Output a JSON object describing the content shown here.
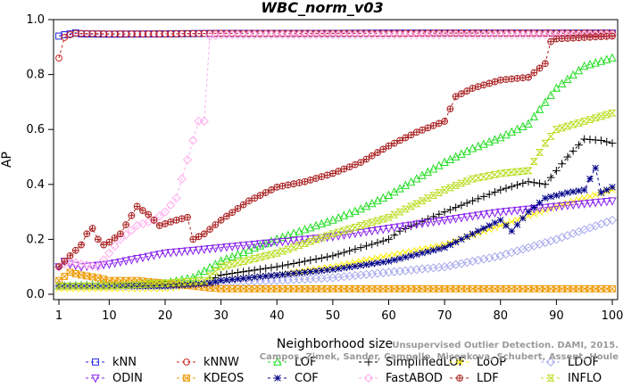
{
  "chart_data": {
    "type": "line",
    "title": "WBC_norm_v03",
    "xlabel": "Neighborhood size",
    "ylabel": "AP",
    "xlim": [
      1,
      100
    ],
    "ylim": [
      0,
      1.0
    ],
    "x_ticks": [
      1,
      10,
      20,
      30,
      40,
      50,
      60,
      70,
      80,
      90,
      100
    ],
    "y_ticks": [
      "0.0",
      "0.2",
      "0.4",
      "0.6",
      "0.8",
      "1.0"
    ],
    "grid": false,
    "legend_position": "bottom",
    "series": [
      {
        "name": "kNN",
        "color": "#2222dd",
        "marker": "square",
        "points": [
          [
            1,
            0.94
          ],
          [
            2,
            0.945
          ],
          [
            3,
            0.948
          ],
          [
            4,
            0.952
          ],
          [
            5,
            0.948
          ],
          [
            10,
            0.947
          ],
          [
            20,
            0.948
          ],
          [
            30,
            0.95
          ],
          [
            40,
            0.95
          ],
          [
            50,
            0.95
          ],
          [
            60,
            0.951
          ],
          [
            70,
            0.951
          ],
          [
            80,
            0.951
          ],
          [
            90,
            0.951
          ],
          [
            100,
            0.951
          ]
        ]
      },
      {
        "name": "kNNW",
        "color": "#cc2222",
        "marker": "circle",
        "points": [
          [
            1,
            0.86
          ],
          [
            2,
            0.935
          ],
          [
            3,
            0.945
          ],
          [
            4,
            0.95
          ],
          [
            10,
            0.948
          ],
          [
            20,
            0.948
          ],
          [
            30,
            0.95
          ],
          [
            40,
            0.95
          ],
          [
            50,
            0.95
          ],
          [
            60,
            0.95
          ],
          [
            70,
            0.951
          ],
          [
            80,
            0.951
          ],
          [
            90,
            0.951
          ],
          [
            100,
            0.951
          ]
        ]
      },
      {
        "name": "LOF",
        "color": "#22dd22",
        "marker": "triangle",
        "points": [
          [
            1,
            0.03
          ],
          [
            10,
            0.035
          ],
          [
            20,
            0.04
          ],
          [
            25,
            0.06
          ],
          [
            30,
            0.12
          ],
          [
            40,
            0.2
          ],
          [
            50,
            0.27
          ],
          [
            55,
            0.31
          ],
          [
            60,
            0.36
          ],
          [
            65,
            0.42
          ],
          [
            70,
            0.48
          ],
          [
            75,
            0.53
          ],
          [
            80,
            0.57
          ],
          [
            85,
            0.62
          ],
          [
            90,
            0.75
          ],
          [
            95,
            0.83
          ],
          [
            100,
            0.86
          ]
        ]
      },
      {
        "name": "SimplifiedLOF",
        "color": "#000000",
        "marker": "plus",
        "points": [
          [
            1,
            0.03
          ],
          [
            10,
            0.03
          ],
          [
            20,
            0.035
          ],
          [
            27,
            0.04
          ],
          [
            30,
            0.07
          ],
          [
            40,
            0.1
          ],
          [
            50,
            0.14
          ],
          [
            60,
            0.2
          ],
          [
            62,
            0.23
          ],
          [
            70,
            0.3
          ],
          [
            80,
            0.38
          ],
          [
            85,
            0.41
          ],
          [
            88,
            0.4
          ],
          [
            90,
            0.45
          ],
          [
            92,
            0.5
          ],
          [
            95,
            0.565
          ],
          [
            98,
            0.56
          ],
          [
            100,
            0.55
          ]
        ]
      },
      {
        "name": "LoOP",
        "color": "#ffee00",
        "marker": "x",
        "points": [
          [
            1,
            0.02
          ],
          [
            10,
            0.02
          ],
          [
            20,
            0.02
          ],
          [
            27,
            0.04
          ],
          [
            30,
            0.05
          ],
          [
            40,
            0.07
          ],
          [
            50,
            0.1
          ],
          [
            60,
            0.14
          ],
          [
            70,
            0.18
          ],
          [
            80,
            0.25
          ],
          [
            90,
            0.32
          ],
          [
            100,
            0.38
          ]
        ]
      },
      {
        "name": "LDOF",
        "color": "#aaaaee",
        "marker": "diamond",
        "points": [
          [
            1,
            0.03
          ],
          [
            10,
            0.03
          ],
          [
            20,
            0.03
          ],
          [
            28,
            0.04
          ],
          [
            30,
            0.045
          ],
          [
            40,
            0.05
          ],
          [
            50,
            0.06
          ],
          [
            60,
            0.08
          ],
          [
            70,
            0.1
          ],
          [
            80,
            0.14
          ],
          [
            90,
            0.2
          ],
          [
            100,
            0.27
          ]
        ]
      },
      {
        "name": "ODIN",
        "color": "#8822ee",
        "marker": "triangle-down",
        "points": [
          [
            1,
            0.1
          ],
          [
            2,
            0.12
          ],
          [
            3,
            0.11
          ],
          [
            5,
            0.1
          ],
          [
            10,
            0.11
          ],
          [
            15,
            0.13
          ],
          [
            20,
            0.15
          ],
          [
            30,
            0.17
          ],
          [
            40,
            0.19
          ],
          [
            50,
            0.21
          ],
          [
            60,
            0.24
          ],
          [
            70,
            0.27
          ],
          [
            80,
            0.3
          ],
          [
            90,
            0.32
          ],
          [
            100,
            0.34
          ]
        ]
      },
      {
        "name": "KDEOS",
        "color": "#ee9900",
        "marker": "boxed-x",
        "points": [
          [
            1,
            0.05
          ],
          [
            3,
            0.08
          ],
          [
            5,
            0.07
          ],
          [
            8,
            0.06
          ],
          [
            10,
            0.05
          ],
          [
            15,
            0.05
          ],
          [
            20,
            0.04
          ],
          [
            25,
            0.03
          ],
          [
            27,
            0.025
          ],
          [
            30,
            0.02
          ],
          [
            40,
            0.02
          ],
          [
            50,
            0.02
          ],
          [
            60,
            0.02
          ],
          [
            70,
            0.02
          ],
          [
            80,
            0.02
          ],
          [
            90,
            0.02
          ],
          [
            100,
            0.02
          ]
        ]
      },
      {
        "name": "COF",
        "color": "#000088",
        "marker": "star",
        "points": [
          [
            1,
            0.03
          ],
          [
            10,
            0.03
          ],
          [
            20,
            0.03
          ],
          [
            28,
            0.04
          ],
          [
            30,
            0.05
          ],
          [
            40,
            0.07
          ],
          [
            50,
            0.09
          ],
          [
            60,
            0.12
          ],
          [
            70,
            0.17
          ],
          [
            75,
            0.22
          ],
          [
            78,
            0.25
          ],
          [
            80,
            0.27
          ],
          [
            82,
            0.23
          ],
          [
            85,
            0.3
          ],
          [
            88,
            0.35
          ],
          [
            90,
            0.36
          ],
          [
            92,
            0.37
          ],
          [
            95,
            0.38
          ],
          [
            97,
            0.46
          ],
          [
            98,
            0.37
          ],
          [
            100,
            0.39
          ]
        ]
      },
      {
        "name": "FastABOD",
        "color": "#ffaaee",
        "marker": "diamond",
        "points": [
          [
            1,
            0.1
          ],
          [
            3,
            0.12
          ],
          [
            5,
            0.11
          ],
          [
            8,
            0.1
          ],
          [
            10,
            0.15
          ],
          [
            12,
            0.2
          ],
          [
            15,
            0.25
          ],
          [
            18,
            0.27
          ],
          [
            20,
            0.3
          ],
          [
            22,
            0.35
          ],
          [
            24,
            0.49
          ],
          [
            26,
            0.63
          ],
          [
            27,
            0.63
          ],
          [
            28,
            0.94
          ],
          [
            30,
            0.945
          ],
          [
            40,
            0.945
          ],
          [
            50,
            0.945
          ],
          [
            60,
            0.945
          ],
          [
            70,
            0.945
          ],
          [
            80,
            0.945
          ],
          [
            90,
            0.945
          ],
          [
            100,
            0.945
          ]
        ]
      },
      {
        "name": "LDF",
        "color": "#aa2222",
        "marker": "circle-plus",
        "points": [
          [
            1,
            0.1
          ],
          [
            5,
            0.18
          ],
          [
            6,
            0.22
          ],
          [
            7,
            0.24
          ],
          [
            8,
            0.2
          ],
          [
            9,
            0.18
          ],
          [
            10,
            0.19
          ],
          [
            12,
            0.22
          ],
          [
            15,
            0.32
          ],
          [
            17,
            0.29
          ],
          [
            19,
            0.25
          ],
          [
            22,
            0.27
          ],
          [
            24,
            0.28
          ],
          [
            25,
            0.2
          ],
          [
            27,
            0.22
          ],
          [
            30,
            0.27
          ],
          [
            35,
            0.34
          ],
          [
            40,
            0.39
          ],
          [
            45,
            0.41
          ],
          [
            50,
            0.44
          ],
          [
            55,
            0.48
          ],
          [
            60,
            0.54
          ],
          [
            65,
            0.59
          ],
          [
            70,
            0.63
          ],
          [
            72,
            0.72
          ],
          [
            75,
            0.75
          ],
          [
            80,
            0.78
          ],
          [
            85,
            0.79
          ],
          [
            88,
            0.84
          ],
          [
            89,
            0.92
          ],
          [
            90,
            0.93
          ],
          [
            100,
            0.94
          ]
        ]
      },
      {
        "name": "INFLO",
        "color": "#bbdd22",
        "marker": "hourglass",
        "points": [
          [
            1,
            0.03
          ],
          [
            10,
            0.03
          ],
          [
            20,
            0.04
          ],
          [
            27,
            0.05
          ],
          [
            30,
            0.1
          ],
          [
            40,
            0.15
          ],
          [
            50,
            0.22
          ],
          [
            60,
            0.28
          ],
          [
            65,
            0.33
          ],
          [
            70,
            0.38
          ],
          [
            75,
            0.42
          ],
          [
            80,
            0.44
          ],
          [
            85,
            0.45
          ],
          [
            88,
            0.55
          ],
          [
            90,
            0.6
          ],
          [
            95,
            0.63
          ],
          [
            100,
            0.66
          ]
        ]
      }
    ]
  },
  "watermark": "Unsupervised Outlier Detection. DAMI, 2015. Campos, Zimek, Sander, Campello, Micenkova, Schubert, Assent, Houle"
}
